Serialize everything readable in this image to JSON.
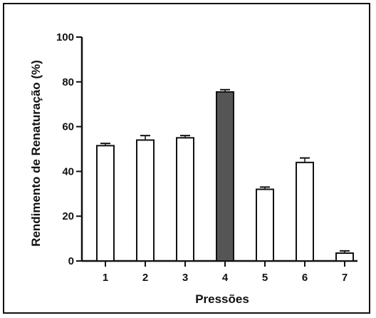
{
  "chart_data": {
    "type": "bar",
    "title": "",
    "xlabel": "Pressões",
    "ylabel": "Rendimento de Renaturação (%)",
    "categories": [
      "1",
      "2",
      "3",
      "4",
      "5",
      "6",
      "7"
    ],
    "values": [
      51.5,
      54,
      55,
      75.5,
      32,
      44,
      3.5
    ],
    "errors": [
      1,
      2,
      1,
      1,
      1,
      2,
      1
    ],
    "ylim": [
      0,
      100
    ],
    "yticks": [
      "0",
      "20",
      "40",
      "60",
      "80",
      "100"
    ],
    "grid": false,
    "highlight_index": 3,
    "colors": {
      "bar_fill": "#ffffff",
      "highlight_fill": "#555555",
      "stroke": "#111111"
    }
  }
}
